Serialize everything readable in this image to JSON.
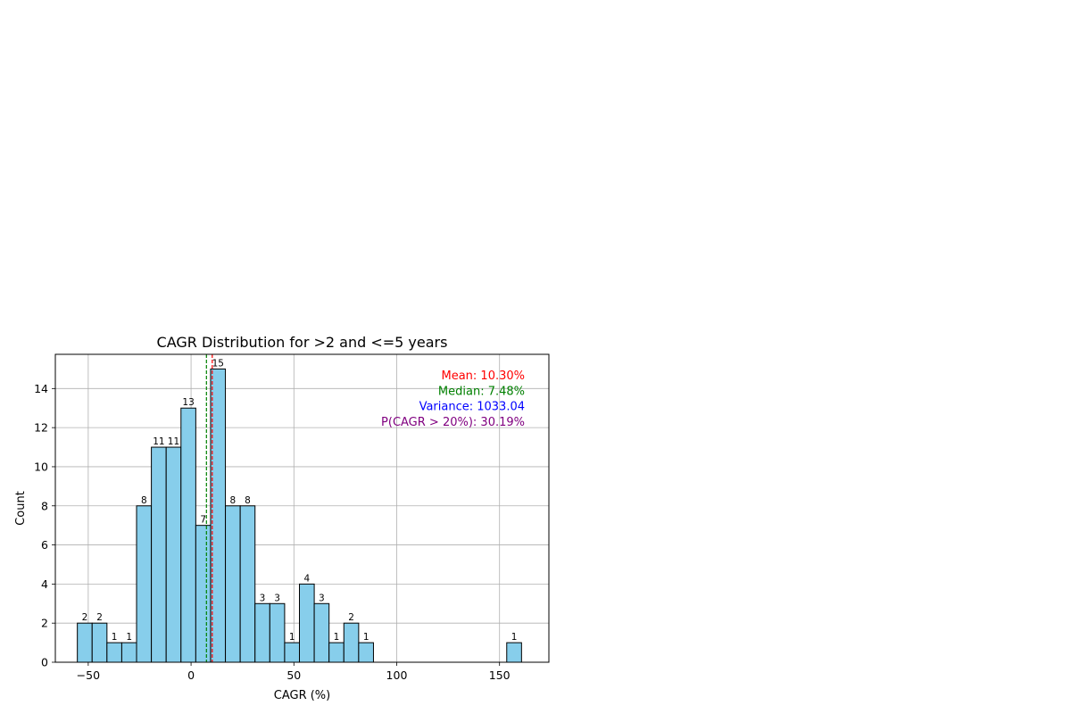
{
  "chart_data": {
    "type": "bar",
    "title": "CAGR Distribution for >2 and <=5 years",
    "xlabel": "CAGR (%)",
    "ylabel": "Count",
    "xlim": [
      -66,
      174
    ],
    "ylim": [
      0,
      15.75
    ],
    "xticks": [
      -50,
      0,
      50,
      100,
      150
    ],
    "xtick_labels": [
      "−50",
      "0",
      "50",
      "100",
      "150"
    ],
    "yticks": [
      0,
      2,
      4,
      6,
      8,
      10,
      12,
      14
    ],
    "ytick_labels": [
      "0",
      "2",
      "4",
      "6",
      "8",
      "10",
      "12",
      "14"
    ],
    "grid": true,
    "bar_color": "#87ceeb",
    "bar_edge_color": "#000000",
    "bin_edges": [
      -55.3,
      -48.1,
      -40.9,
      -33.7,
      -26.5,
      -19.3,
      -12.1,
      -4.9,
      2.3,
      9.5,
      16.7,
      23.9,
      31.1,
      38.3,
      45.5,
      52.7,
      59.9,
      67.1,
      74.3,
      81.5,
      88.7,
      95.9,
      103.1,
      110.3,
      117.5,
      124.7,
      131.9,
      139.1,
      146.3,
      153.5,
      160.7
    ],
    "counts": [
      2,
      2,
      1,
      1,
      8,
      11,
      11,
      13,
      7,
      15,
      8,
      8,
      3,
      3,
      1,
      4,
      3,
      1,
      2,
      1,
      0,
      0,
      0,
      0,
      0,
      0,
      0,
      0,
      0,
      1
    ],
    "reference_lines": [
      {
        "name": "mean",
        "value": 10.3,
        "color": "#ff0000",
        "style": "dashed"
      },
      {
        "name": "median",
        "value": 7.48,
        "color": "#008000",
        "style": "dashed"
      }
    ],
    "annotations": [
      {
        "text": "Mean: 10.30%",
        "color": "#ff0000"
      },
      {
        "text": "Median: 7.48%",
        "color": "#008000"
      },
      {
        "text": "Variance: 1033.04",
        "color": "#0000ff"
      },
      {
        "text": "P(CAGR > 20%): 30.19%",
        "color": "#800080"
      }
    ]
  }
}
